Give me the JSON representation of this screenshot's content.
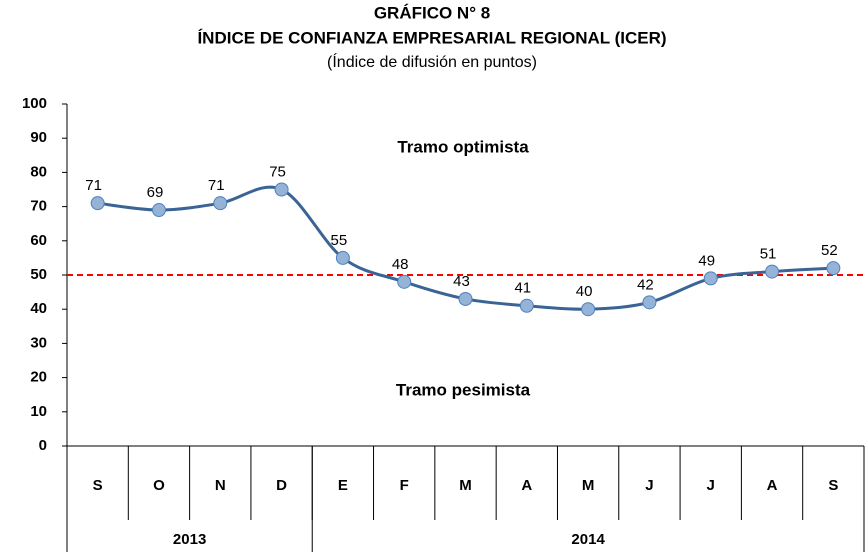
{
  "chart_data": {
    "type": "line",
    "title": "GRÁFICO N° 8",
    "subtitle": "ÍNDICE  DE CONFIANZA EMPRESARIAL REGIONAL (ICER)",
    "unit_note": "(Índice de difusión en puntos)",
    "categories": [
      "S",
      "O",
      "N",
      "D",
      "E",
      "F",
      "M",
      "A",
      "M",
      "J",
      "J",
      "A",
      "S"
    ],
    "groups": [
      {
        "label": "2013",
        "count": 4
      },
      {
        "label": "2014",
        "count": 9
      }
    ],
    "values": [
      71,
      69,
      71,
      75,
      55,
      48,
      43,
      41,
      40,
      42,
      49,
      51,
      52
    ],
    "color": "#3a6496",
    "marker_color": "#95b3d7",
    "ylim": [
      0,
      100
    ],
    "yticks": [
      0,
      10,
      20,
      30,
      40,
      50,
      60,
      70,
      80,
      90,
      100
    ],
    "grid": false,
    "reference_line": {
      "value": 50,
      "color": "#ff0000"
    },
    "annotations": [
      "Tramo optimista",
      "Tramo pesimista"
    ]
  }
}
